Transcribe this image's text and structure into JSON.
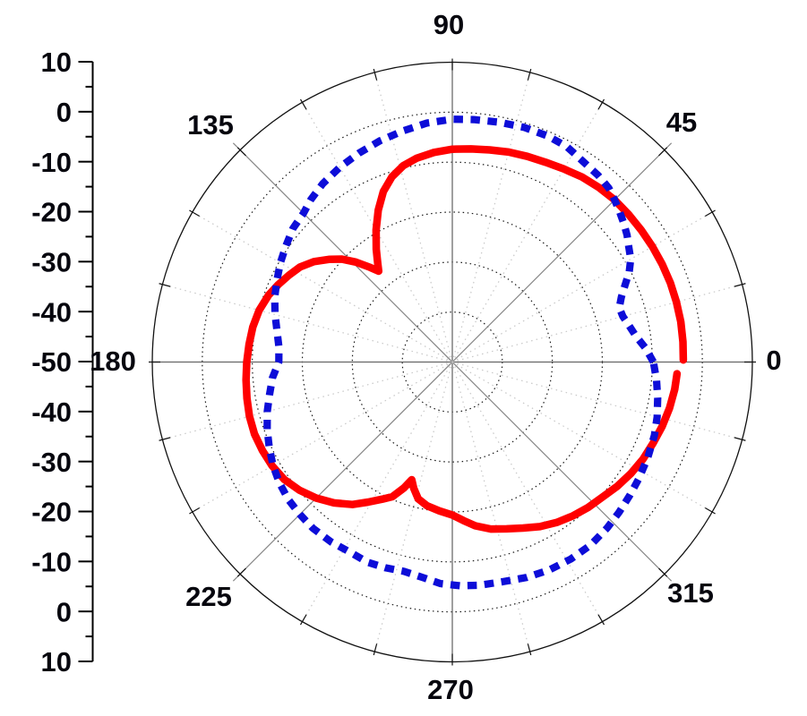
{
  "chart_data": {
    "type": "line",
    "subtype": "polar-radiation-pattern",
    "title": "",
    "angle_unit": "degrees",
    "radial_axis": {
      "min_db_center": -50,
      "max_db_outer": 10,
      "ring_step_db": 10,
      "minor_tick_step_db": 5,
      "tick_labels_top_to_bottom": [
        "10",
        "0",
        "-10",
        "-20",
        "-30",
        "-40",
        "-50",
        "-40",
        "-30",
        "-20",
        "-10",
        "0",
        "10"
      ]
    },
    "grid": {
      "rings_db": [
        0,
        -10,
        -20,
        -30,
        -40
      ],
      "spoke_step_deg": 15,
      "diagonal_spokes_deg": [
        45,
        135,
        225,
        315
      ],
      "axis_spokes_deg": [
        0,
        90,
        180,
        270
      ],
      "outer_tick_step_deg": 15,
      "grid_on": true
    },
    "angle_labels": [
      {
        "angle": 0,
        "text": "0"
      },
      {
        "angle": 45,
        "text": "45"
      },
      {
        "angle": 90,
        "text": "90"
      },
      {
        "angle": 135,
        "text": "135"
      },
      {
        "angle": 180,
        "text": "180"
      },
      {
        "angle": 225,
        "text": "225"
      },
      {
        "angle": 270,
        "text": "270"
      },
      {
        "angle": 315,
        "text": "315"
      }
    ],
    "legend": null,
    "series": [
      {
        "name": "red-solid",
        "color": "#ff0000",
        "style": "solid",
        "closed": false,
        "points_deg_db": [
          [
            0.5,
            -3.8
          ],
          [
            5,
            -3.7
          ],
          [
            10,
            -3.6
          ],
          [
            15,
            -3.6
          ],
          [
            20,
            -3.6
          ],
          [
            25,
            -3.7
          ],
          [
            30,
            -3.8
          ],
          [
            35,
            -3.9
          ],
          [
            40,
            -4.0
          ],
          [
            45,
            -4.1
          ],
          [
            50,
            -4.4
          ],
          [
            55,
            -4.8
          ],
          [
            60,
            -5.4
          ],
          [
            65,
            -5.9
          ],
          [
            70,
            -6.2
          ],
          [
            75,
            -6.5
          ],
          [
            80,
            -6.9
          ],
          [
            85,
            -7.2
          ],
          [
            90,
            -7.4
          ],
          [
            95,
            -7.9
          ],
          [
            100,
            -8.6
          ],
          [
            104,
            -9.5
          ],
          [
            108,
            -11.0
          ],
          [
            112,
            -13.2
          ],
          [
            116,
            -16.2
          ],
          [
            120,
            -19.5
          ],
          [
            124,
            -22.8
          ],
          [
            127,
            -25.2
          ],
          [
            129,
            -26.6
          ],
          [
            131,
            -24.9
          ],
          [
            134,
            -22.2
          ],
          [
            137,
            -19.8
          ],
          [
            140,
            -18.0
          ],
          [
            144,
            -15.8
          ],
          [
            148,
            -14.1
          ],
          [
            152,
            -13.0
          ],
          [
            156,
            -11.9
          ],
          [
            160,
            -10.9
          ],
          [
            165,
            -10.0
          ],
          [
            170,
            -9.5
          ],
          [
            175,
            -9.2
          ],
          [
            180,
            -8.9
          ],
          [
            185,
            -8.6
          ],
          [
            190,
            -8.3
          ],
          [
            195,
            -8.0
          ],
          [
            200,
            -7.9
          ],
          [
            205,
            -8.1
          ],
          [
            210,
            -8.4
          ],
          [
            215,
            -9.0
          ],
          [
            220,
            -10.1
          ],
          [
            225,
            -11.5
          ],
          [
            230,
            -13.2
          ],
          [
            235,
            -15.2
          ],
          [
            239,
            -17.3
          ],
          [
            243,
            -19.2
          ],
          [
            246,
            -20.5
          ],
          [
            249,
            -23.0
          ],
          [
            251,
            -25.1
          ],
          [
            253,
            -23.6
          ],
          [
            256,
            -21.8
          ],
          [
            260,
            -20.8
          ],
          [
            265,
            -20.1
          ],
          [
            270,
            -19.4
          ],
          [
            274,
            -18.2
          ],
          [
            278,
            -16.9
          ],
          [
            283,
            -15.7
          ],
          [
            288,
            -14.9
          ],
          [
            293,
            -13.9
          ],
          [
            298,
            -12.7
          ],
          [
            303,
            -11.7
          ],
          [
            308,
            -10.9
          ],
          [
            313,
            -10.2
          ],
          [
            318,
            -9.6
          ],
          [
            323,
            -8.7
          ],
          [
            328,
            -7.9
          ],
          [
            333,
            -7.2
          ],
          [
            338,
            -6.7
          ],
          [
            343,
            -6.1
          ],
          [
            348,
            -5.6
          ],
          [
            353,
            -5.2
          ],
          [
            357,
            -5.0
          ]
        ]
      },
      {
        "name": "blue-dashed",
        "color": "#0d0dd8",
        "style": "dashed",
        "closed": true,
        "points_deg_db": [
          [
            0,
            -9.8
          ],
          [
            4,
            -11.2
          ],
          [
            8,
            -12.9
          ],
          [
            12,
            -14.0
          ],
          [
            15,
            -14.7
          ],
          [
            18,
            -14.9
          ],
          [
            21,
            -13.8
          ],
          [
            24,
            -12.2
          ],
          [
            27,
            -10.3
          ],
          [
            30,
            -8.8
          ],
          [
            33,
            -7.9
          ],
          [
            36,
            -6.8
          ],
          [
            39,
            -5.9
          ],
          [
            42,
            -5.0
          ],
          [
            45,
            -4.1
          ],
          [
            48,
            -3.2
          ],
          [
            52,
            -2.6
          ],
          [
            57,
            -2.1
          ],
          [
            62,
            -1.2
          ],
          [
            67,
            -0.9
          ],
          [
            73,
            -0.9
          ],
          [
            79,
            -1.1
          ],
          [
            85,
            -1.3
          ],
          [
            90,
            -1.4
          ],
          [
            96,
            -1.9
          ],
          [
            102,
            -2.7
          ],
          [
            108,
            -3.4
          ],
          [
            114,
            -4.2
          ],
          [
            120,
            -5.0
          ],
          [
            126,
            -5.9
          ],
          [
            131,
            -6.9
          ],
          [
            135,
            -7.9
          ],
          [
            140,
            -8.4
          ],
          [
            145,
            -9.4
          ],
          [
            150,
            -10.3
          ],
          [
            155,
            -11.3
          ],
          [
            160,
            -12.2
          ],
          [
            165,
            -13.3
          ],
          [
            170,
            -14.4
          ],
          [
            175,
            -15.2
          ],
          [
            180,
            -15.3
          ],
          [
            185,
            -13.9
          ],
          [
            190,
            -12.9
          ],
          [
            195,
            -11.7
          ],
          [
            200,
            -10.6
          ],
          [
            205,
            -9.6
          ],
          [
            210,
            -8.6
          ],
          [
            215,
            -7.8
          ],
          [
            220,
            -7.2
          ],
          [
            225,
            -6.9
          ],
          [
            230,
            -6.6
          ],
          [
            236,
            -6.6
          ],
          [
            242,
            -6.8
          ],
          [
            247,
            -6.5
          ],
          [
            252,
            -6.7
          ],
          [
            257,
            -7.0
          ],
          [
            262,
            -6.5
          ],
          [
            267,
            -5.6
          ],
          [
            272,
            -5.2
          ],
          [
            277,
            -5.0
          ],
          [
            283,
            -4.9
          ],
          [
            289,
            -4.4
          ],
          [
            295,
            -4.1
          ],
          [
            301,
            -4.0
          ],
          [
            307,
            -4.1
          ],
          [
            313,
            -4.6
          ],
          [
            318,
            -5.1
          ],
          [
            323,
            -5.6
          ],
          [
            328,
            -6.0
          ],
          [
            334,
            -6.5
          ],
          [
            340,
            -7.0
          ],
          [
            345,
            -7.6
          ],
          [
            350,
            -8.3
          ],
          [
            355,
            -9.0
          ],
          [
            360,
            -9.8
          ]
        ]
      }
    ],
    "colors": {
      "background": "#ffffff",
      "outer_circle": "#111111",
      "dotted_ring": "#1a1a1a",
      "axis_spoke": "#666666",
      "diagonal_spoke": "#8a8a8a",
      "minor_spoke": "#c9c9c9",
      "label_text": "#06060e"
    }
  }
}
